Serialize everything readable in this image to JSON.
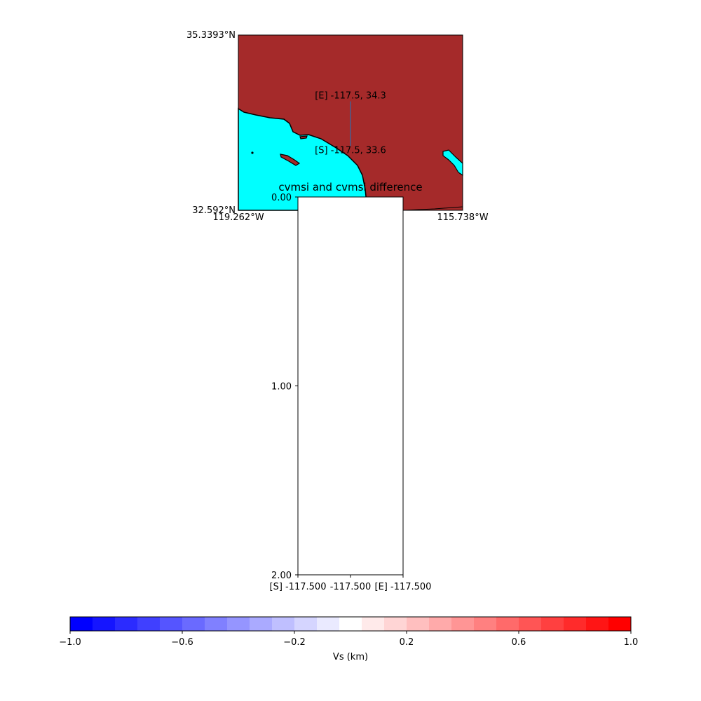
{
  "chart_data": [
    {
      "type": "map",
      "xlim": [
        -119.262,
        -115.738
      ],
      "ylim": [
        32.592,
        35.3393
      ],
      "xticks": [
        {
          "value": -119.262,
          "label": "119.262°W"
        },
        {
          "value": -115.738,
          "label": "115.738°W"
        }
      ],
      "yticks": [
        {
          "value": 35.3393,
          "label": "35.3393°N"
        },
        {
          "value": 32.592,
          "label": "32.592°N"
        }
      ],
      "profile": {
        "x": [
          -117.5,
          -117.5
        ],
        "y": [
          33.6,
          34.3
        ],
        "color": "#4c5c8c"
      },
      "annotations": [
        {
          "text": "[E] -117.5, 34.3",
          "x": -117.5,
          "y": 34.3
        },
        {
          "text": "[S] -117.5, 33.6",
          "x": -117.5,
          "y": 33.6
        }
      ],
      "land_color": "#a52a2a",
      "water_color": "#00ffff"
    },
    {
      "type": "cross-section",
      "title": "cvmsi and cvmsi difference",
      "xlim": [
        0,
        1
      ],
      "xticks": [
        {
          "value": 0,
          "label": "[S] -117.500"
        },
        {
          "value": 0.5,
          "label": "-117.500"
        },
        {
          "value": 1,
          "label": "[E] -117.500"
        }
      ],
      "ylim": [
        0,
        2
      ],
      "y_inverted": true,
      "yticks": [
        {
          "value": 0,
          "label": "0.00"
        },
        {
          "value": 1,
          "label": "1.00"
        },
        {
          "value": 2,
          "label": "2.00"
        }
      ]
    },
    {
      "type": "colorbar",
      "label": "Vs (km)",
      "xlim": [
        -1,
        1
      ],
      "bins": [
        -1,
        -0.92,
        -0.84,
        -0.76,
        -0.68,
        -0.6,
        -0.52,
        -0.44,
        -0.36,
        -0.28,
        -0.2,
        -0.12,
        -0.04,
        0.04,
        0.12,
        0.2,
        0.28,
        0.36,
        0.44,
        0.52,
        0.6,
        0.68,
        0.76,
        0.84,
        0.92,
        1
      ],
      "colors": [
        "#0000ff",
        "#1515ff",
        "#2b2bff",
        "#4040ff",
        "#5555ff",
        "#6a6aff",
        "#8080ff",
        "#9595ff",
        "#aaaaff",
        "#bfbfff",
        "#d5d5ff",
        "#eaeaff",
        "#ffffff",
        "#ffeaea",
        "#ffd5d5",
        "#ffbfbf",
        "#ffaaaa",
        "#ff9595",
        "#ff8080",
        "#ff6a6a",
        "#ff5555",
        "#ff4040",
        "#ff2b2b",
        "#ff1515",
        "#ff0000"
      ],
      "xticks": [
        {
          "value": -1,
          "label": "−1.0"
        },
        {
          "value": -0.6,
          "label": "−0.6"
        },
        {
          "value": -0.2,
          "label": "−0.2"
        },
        0.2,
        0.6,
        {
          "value": 1,
          "label": "1.0"
        }
      ]
    }
  ]
}
